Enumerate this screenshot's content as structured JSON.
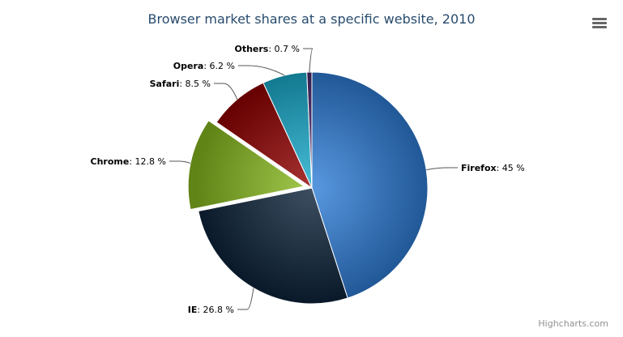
{
  "chart_data": {
    "type": "pie",
    "title": "Browser market shares at a specific website, 2010",
    "unit": "%",
    "slices": [
      {
        "name": "Firefox",
        "value": 45,
        "color": "#2f7ed8",
        "sliced": false
      },
      {
        "name": "IE",
        "value": 26.8,
        "color": "#0d233a",
        "sliced": false
      },
      {
        "name": "Chrome",
        "value": 12.8,
        "color": "#8bbc21",
        "sliced": true
      },
      {
        "name": "Safari",
        "value": 8.5,
        "color": "#910000",
        "sliced": false
      },
      {
        "name": "Opera",
        "value": 6.2,
        "color": "#1aadce",
        "sliced": false
      },
      {
        "name": "Others",
        "value": 0.7,
        "color": "#492970",
        "sliced": false
      }
    ],
    "legend": "none"
  },
  "menu_icon": "hamburger-menu-icon",
  "credits": "Highcharts.com"
}
